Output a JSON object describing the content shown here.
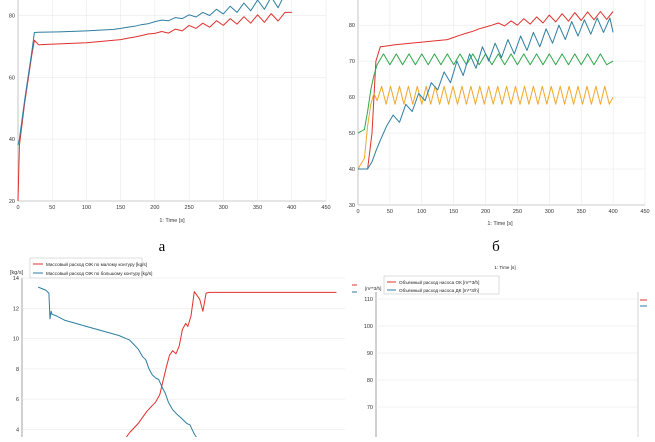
{
  "captions": {
    "a": "а",
    "b": "б"
  },
  "colors": {
    "red": "#e0302c",
    "blue": "#2e7ea1",
    "green": "#2ea84a",
    "orange": "#f0a828"
  },
  "chart_data": [
    {
      "id": "top-left",
      "type": "line",
      "xlabel": "1: Time [s]",
      "xlim": [
        0,
        450
      ],
      "ylim": [
        20,
        85
      ],
      "xticks": [
        "0",
        "50",
        "100",
        "150",
        "200",
        "250",
        "300",
        "350",
        "400",
        "450"
      ],
      "xtick_values": [
        0,
        50,
        100,
        150,
        200,
        250,
        300,
        350,
        400,
        450
      ],
      "yticks": [
        "20",
        "40",
        "60",
        "80"
      ],
      "ytick_values": [
        20,
        40,
        60,
        80
      ],
      "series": [
        {
          "color": "#e0302c",
          "x": [
            0,
            2,
            10,
            20,
            24,
            30,
            60,
            100,
            140,
            150,
            160,
            170,
            180,
            190,
            200,
            210,
            220,
            230,
            240,
            250,
            260,
            270,
            280,
            290,
            300,
            310,
            320,
            330,
            340,
            350,
            360,
            370,
            380,
            390,
            400
          ],
          "y": [
            20,
            38,
            52,
            67,
            72,
            70.5,
            70.8,
            71.2,
            72,
            72.2,
            72.6,
            73,
            73.5,
            74,
            74.2,
            74.8,
            74.3,
            75.6,
            75,
            76.8,
            75.8,
            77.5,
            76.2,
            78.3,
            76.8,
            79,
            77.2,
            79.6,
            77.5,
            80.2,
            77.8,
            80.6,
            78.2,
            81,
            81
          ]
        },
        {
          "color": "#2e7ea1",
          "x": [
            0,
            2,
            10,
            20,
            24,
            30,
            60,
            100,
            140,
            150,
            160,
            170,
            180,
            190,
            200,
            210,
            220,
            230,
            240,
            250,
            260,
            270,
            280,
            290,
            300,
            310,
            320,
            330,
            340,
            350,
            360,
            370,
            380,
            390,
            400
          ],
          "y": [
            38,
            40,
            53,
            68,
            74.5,
            74.6,
            74.7,
            75,
            75.5,
            75.8,
            76.2,
            76.5,
            77,
            77.3,
            78,
            78.5,
            78.3,
            79.3,
            79,
            80.2,
            79.5,
            81,
            80,
            82,
            80.5,
            83,
            81,
            84,
            81.5,
            85,
            82,
            86,
            82.5,
            87,
            87
          ]
        }
      ]
    },
    {
      "id": "top-right",
      "type": "line",
      "xlabel": "1: Time [s]",
      "xlim": [
        0,
        450
      ],
      "ylim": [
        30,
        87
      ],
      "xticks": [
        "0",
        "50",
        "100",
        "150",
        "200",
        "250",
        "300",
        "350",
        "400",
        "450"
      ],
      "xtick_values": [
        0,
        50,
        100,
        150,
        200,
        250,
        300,
        350,
        400,
        450
      ],
      "yticks": [
        "30",
        "40",
        "50",
        "60",
        "70",
        "80"
      ],
      "ytick_values": [
        30,
        40,
        50,
        60,
        70,
        80
      ],
      "series": [
        {
          "color": "#e0302c",
          "x": [
            0,
            15,
            22,
            28,
            35,
            60,
            100,
            140,
            150,
            160,
            170,
            180,
            190,
            200,
            210,
            220,
            230,
            240,
            250,
            260,
            270,
            280,
            290,
            300,
            310,
            320,
            330,
            340,
            350,
            360,
            370,
            380,
            390,
            400
          ],
          "y": [
            40,
            40,
            50,
            70,
            74,
            74.6,
            75.3,
            76,
            76.6,
            77.2,
            77.8,
            78.3,
            79,
            79.5,
            80,
            80.6,
            79.8,
            81.2,
            80,
            81.8,
            80.3,
            82.3,
            80.6,
            82.8,
            80.9,
            83.2,
            81.1,
            83.5,
            81.3,
            83.7,
            81.5,
            83.8,
            81.6,
            83.8
          ]
        },
        {
          "color": "#2ea84a",
          "x": [
            0,
            10,
            15,
            20,
            25,
            30,
            40,
            50,
            60,
            70,
            80,
            90,
            100,
            110,
            120,
            130,
            140,
            150,
            160,
            170,
            180,
            190,
            200,
            210,
            220,
            230,
            240,
            250,
            260,
            270,
            280,
            290,
            300,
            310,
            320,
            330,
            340,
            350,
            360,
            370,
            380,
            390,
            400
          ],
          "y": [
            50,
            51,
            56,
            62,
            66,
            69,
            72,
            69,
            72,
            69,
            72,
            69,
            72,
            69,
            72,
            69,
            72,
            69,
            72,
            69,
            72,
            69,
            72,
            69,
            72,
            69,
            72,
            69,
            72,
            69,
            72,
            69,
            72,
            69,
            72,
            69,
            72,
            69,
            72,
            69,
            72,
            69,
            70
          ]
        },
        {
          "color": "#f0a828",
          "x": [
            0,
            10,
            15,
            20,
            25,
            30,
            37,
            44,
            51,
            58,
            65,
            72,
            79,
            86,
            93,
            100,
            107,
            114,
            121,
            128,
            135,
            142,
            149,
            156,
            163,
            170,
            177,
            184,
            191,
            198,
            205,
            212,
            219,
            226,
            233,
            240,
            247,
            254,
            261,
            268,
            275,
            282,
            289,
            296,
            303,
            310,
            317,
            324,
            331,
            338,
            345,
            352,
            359,
            366,
            373,
            380,
            387,
            394,
            400
          ],
          "y": [
            40,
            43,
            52,
            58,
            61,
            59,
            63,
            58,
            63,
            58,
            63,
            58,
            63,
            58,
            63,
            58,
            63,
            58,
            63,
            58,
            63,
            58,
            63,
            58,
            63,
            58,
            63,
            58,
            63,
            58,
            63,
            58,
            63,
            58,
            63,
            58,
            63,
            58,
            63,
            58,
            63,
            58,
            63,
            58,
            63,
            58,
            63,
            58,
            63,
            58,
            63,
            58,
            63,
            58,
            63,
            58,
            63,
            58,
            60
          ]
        },
        {
          "color": "#2e7ea1",
          "x": [
            0,
            15,
            22,
            28,
            35,
            45,
            55,
            65,
            75,
            85,
            95,
            105,
            115,
            125,
            135,
            145,
            155,
            165,
            175,
            185,
            195,
            205,
            215,
            225,
            235,
            245,
            255,
            265,
            275,
            285,
            295,
            305,
            315,
            325,
            335,
            345,
            355,
            365,
            375,
            385,
            395,
            400
          ],
          "y": [
            40,
            40,
            42,
            45,
            48,
            52,
            55,
            53,
            58,
            56,
            61,
            59,
            64,
            62,
            67,
            64,
            70,
            66,
            72,
            68,
            74,
            70,
            75,
            71,
            76,
            72,
            77,
            73,
            78,
            74,
            79,
            75,
            80,
            76,
            81,
            77,
            81.5,
            77.5,
            82,
            78,
            82,
            78
          ]
        }
      ]
    },
    {
      "id": "bottom-left",
      "type": "line",
      "ylabel": "[kg/s]",
      "ylim": [
        3.5,
        14
      ],
      "yticks": [
        "4",
        "6",
        "8",
        "10",
        "12",
        "14"
      ],
      "ytick_values": [
        4,
        6,
        8,
        10,
        12,
        14
      ],
      "legend": [
        "Массовый расход ОЖ по малому контуру [kg/s]",
        "Массовый расход ОЖ по большому контуру [kg/s]"
      ],
      "legend_position": "top-left",
      "side_legend_label": "[m**3/h]",
      "series": [
        {
          "name": "Массовый расход ОЖ по малому контуру [kg/s]",
          "color": "#e0302c",
          "x": [
            97,
            100,
            104,
            108,
            112,
            116,
            120,
            124,
            128,
            131,
            134,
            137,
            140,
            143,
            146,
            149,
            152,
            154,
            157,
            160,
            165,
            168,
            171,
            174,
            177,
            180,
            182,
            185,
            190,
            195,
            200,
            210,
            220,
            230,
            240,
            250,
            260,
            270,
            280,
            292
          ],
          "y": [
            3.5,
            3.8,
            4.1,
            4.4,
            4.8,
            5.2,
            5.5,
            5.8,
            6.3,
            7.2,
            8.1,
            8.9,
            9.2,
            9.0,
            9.5,
            10.6,
            11.0,
            10.8,
            11.5,
            13.1,
            12.6,
            11.8,
            13.0,
            13.05,
            13.05,
            13.05,
            13.05,
            13.05,
            13.05,
            13.05,
            13.05,
            13.05,
            13.05,
            13.05,
            13.05,
            13.05,
            13.05,
            13.05,
            13.05,
            13.05
          ]
        },
        {
          "name": "Массовый расход ОЖ по большому контуру [kg/s]",
          "color": "#2e7ea1",
          "x": [
            15,
            22,
            25,
            26,
            27,
            28,
            32,
            40,
            50,
            60,
            70,
            80,
            90,
            100,
            104,
            108,
            112,
            115,
            118,
            121,
            124,
            127,
            130,
            133,
            136,
            140,
            144,
            147,
            150,
            153,
            156,
            158,
            160,
            162
          ],
          "y": [
            13.4,
            13.2,
            13.0,
            11.3,
            11.8,
            11.6,
            11.5,
            11.2,
            11.0,
            10.8,
            10.6,
            10.4,
            10.2,
            9.9,
            9.6,
            9.3,
            8.8,
            8.6,
            8.0,
            7.6,
            7.4,
            7.3,
            6.8,
            6.4,
            5.8,
            5.3,
            5.0,
            4.8,
            4.6,
            4.4,
            4.3,
            4.0,
            3.7,
            3.5
          ]
        }
      ]
    },
    {
      "id": "bottom-right",
      "type": "line",
      "ytick_labels": [
        "110",
        "100",
        "90",
        "80",
        "70"
      ],
      "legend": [
        "Объемный расход насоса ОК [m**3/h]",
        "Объемный расход насоса ДК [m**3/h]"
      ],
      "legend_position": "top-left",
      "top_label": "1: Time [s]"
    }
  ]
}
